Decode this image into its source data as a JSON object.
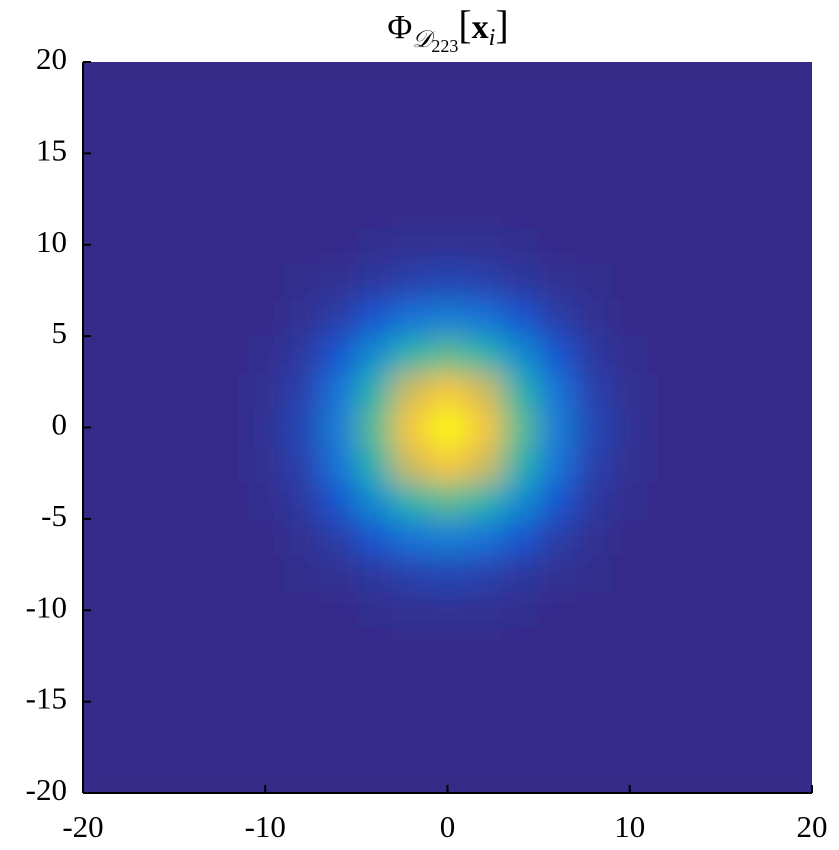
{
  "chart_data": {
    "type": "heatmap",
    "title": {
      "symbol": "Φ",
      "subscript": "𝒟",
      "subscript_index": "223",
      "open": "[",
      "argument": "x",
      "argument_index": "i",
      "close": "]"
    },
    "colormap": "parula",
    "x": [
      -20,
      -18,
      -16,
      -14,
      -12,
      -10,
      -8,
      -6,
      -4,
      -2,
      0,
      2,
      4,
      6,
      8,
      10,
      12,
      14,
      16,
      18,
      20
    ],
    "y": [
      -20,
      -18,
      -16,
      -14,
      -12,
      -10,
      -8,
      -6,
      -4,
      -2,
      0,
      2,
      4,
      6,
      8,
      10,
      12,
      14,
      16,
      18,
      20
    ],
    "z": [
      [
        0,
        0,
        0,
        0,
        0,
        0,
        0,
        0,
        0,
        0,
        0,
        0,
        0,
        0,
        0,
        0,
        0,
        0,
        0,
        0,
        0
      ],
      [
        0,
        0,
        0,
        0,
        0,
        0,
        0,
        0,
        0,
        0,
        0,
        0,
        0,
        0,
        0,
        0,
        0,
        0,
        0,
        0,
        0
      ],
      [
        0,
        0,
        0,
        0,
        0,
        0,
        0,
        0,
        0,
        0,
        0,
        0,
        0,
        0,
        0,
        0,
        0,
        0,
        0,
        0,
        0
      ],
      [
        0,
        0,
        0,
        0,
        0,
        0,
        0,
        0,
        0,
        0,
        0,
        0,
        0,
        0,
        0,
        0,
        0,
        0,
        0,
        0,
        0
      ],
      [
        0,
        0,
        0,
        0,
        0,
        0,
        0,
        0,
        0.01,
        0.01,
        0.01,
        0.01,
        0.01,
        0,
        0,
        0,
        0,
        0,
        0,
        0,
        0
      ],
      [
        0,
        0,
        0,
        0,
        0,
        0,
        0.01,
        0.01,
        0.03,
        0.04,
        0.04,
        0.04,
        0.03,
        0.01,
        0.01,
        0,
        0,
        0,
        0,
        0,
        0
      ],
      [
        0,
        0,
        0,
        0,
        0,
        0.01,
        0.02,
        0.04,
        0.08,
        0.12,
        0.14,
        0.12,
        0.08,
        0.04,
        0.02,
        0.01,
        0,
        0,
        0,
        0,
        0
      ],
      [
        0,
        0,
        0,
        0,
        0,
        0.01,
        0.04,
        0.11,
        0.2,
        0.29,
        0.32,
        0.29,
        0.2,
        0.11,
        0.04,
        0.01,
        0,
        0,
        0,
        0,
        0
      ],
      [
        0,
        0,
        0,
        0,
        0.01,
        0.03,
        0.08,
        0.2,
        0.37,
        0.54,
        0.61,
        0.54,
        0.37,
        0.2,
        0.08,
        0.03,
        0.01,
        0,
        0,
        0,
        0
      ],
      [
        0,
        0,
        0,
        0,
        0.01,
        0.04,
        0.12,
        0.29,
        0.54,
        0.78,
        0.88,
        0.78,
        0.54,
        0.29,
        0.12,
        0.04,
        0.01,
        0,
        0,
        0,
        0
      ],
      [
        0,
        0,
        0,
        0,
        0.01,
        0.04,
        0.14,
        0.32,
        0.61,
        0.88,
        1,
        0.88,
        0.61,
        0.32,
        0.14,
        0.04,
        0.01,
        0,
        0,
        0,
        0
      ],
      [
        0,
        0,
        0,
        0,
        0.01,
        0.04,
        0.12,
        0.29,
        0.54,
        0.78,
        0.88,
        0.78,
        0.54,
        0.29,
        0.12,
        0.04,
        0.01,
        0,
        0,
        0,
        0
      ],
      [
        0,
        0,
        0,
        0,
        0.01,
        0.03,
        0.08,
        0.2,
        0.37,
        0.54,
        0.61,
        0.54,
        0.37,
        0.2,
        0.08,
        0.03,
        0.01,
        0,
        0,
        0,
        0
      ],
      [
        0,
        0,
        0,
        0,
        0,
        0.01,
        0.04,
        0.11,
        0.2,
        0.29,
        0.32,
        0.29,
        0.2,
        0.11,
        0.04,
        0.01,
        0,
        0,
        0,
        0,
        0
      ],
      [
        0,
        0,
        0,
        0,
        0,
        0.01,
        0.02,
        0.04,
        0.08,
        0.12,
        0.14,
        0.12,
        0.08,
        0.04,
        0.02,
        0.01,
        0,
        0,
        0,
        0,
        0
      ],
      [
        0,
        0,
        0,
        0,
        0,
        0,
        0.01,
        0.01,
        0.03,
        0.04,
        0.04,
        0.04,
        0.03,
        0.01,
        0.01,
        0,
        0,
        0,
        0,
        0,
        0
      ],
      [
        0,
        0,
        0,
        0,
        0,
        0,
        0,
        0,
        0.01,
        0.01,
        0.01,
        0.01,
        0.01,
        0,
        0,
        0,
        0,
        0,
        0,
        0,
        0
      ],
      [
        0,
        0,
        0,
        0,
        0,
        0,
        0,
        0,
        0,
        0,
        0,
        0,
        0,
        0,
        0,
        0,
        0,
        0,
        0,
        0,
        0
      ],
      [
        0,
        0,
        0,
        0,
        0,
        0,
        0,
        0,
        0,
        0,
        0,
        0,
        0,
        0,
        0,
        0,
        0,
        0,
        0,
        0,
        0
      ],
      [
        0,
        0,
        0,
        0,
        0,
        0,
        0,
        0,
        0,
        0,
        0,
        0,
        0,
        0,
        0,
        0,
        0,
        0,
        0,
        0,
        0
      ],
      [
        0,
        0,
        0,
        0,
        0,
        0,
        0,
        0,
        0,
        0,
        0,
        0,
        0,
        0,
        0,
        0,
        0,
        0,
        0,
        0,
        0
      ]
    ],
    "xlim": [
      -20,
      20
    ],
    "xticks": [
      -20,
      -10,
      0,
      10,
      20
    ],
    "ylim": [
      -20,
      20
    ],
    "yticks": [
      -20,
      -15,
      -10,
      -5,
      0,
      5,
      10,
      15,
      20
    ]
  }
}
